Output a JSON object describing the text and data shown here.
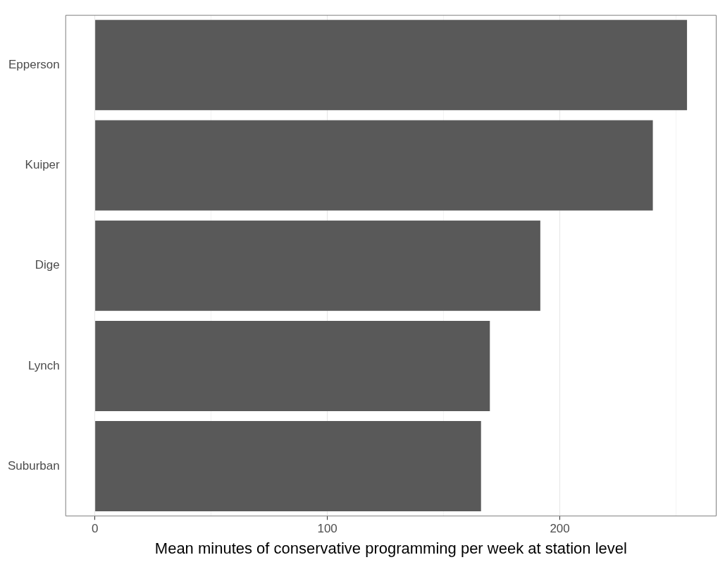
{
  "chart_data": {
    "type": "bar",
    "orientation": "horizontal",
    "xlabel": "Mean minutes of conservative programming per week at station level",
    "categories": [
      "Epperson",
      "Kuiper",
      "Dige",
      "Lynch",
      "Suburban"
    ],
    "values": [
      254.7,
      240,
      191.6,
      169.9,
      166.1
    ],
    "color": "#595959",
    "xlim": [
      -12.7,
      267.4
    ],
    "xticks": [
      0,
      {
        "value": 50,
        "label": null
      },
      100,
      {
        "value": 150,
        "label": null
      },
      200,
      {
        "value": 250,
        "label": null
      }
    ],
    "grid": "x"
  }
}
